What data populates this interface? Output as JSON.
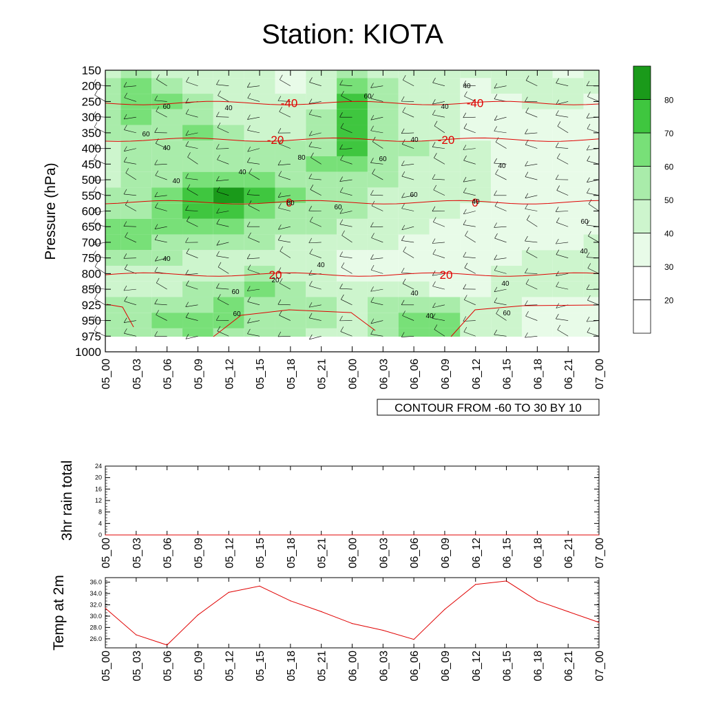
{
  "page": {
    "title": "Station: KIOTA"
  },
  "colors": {
    "contour_shades": [
      "#ffffff",
      "#ffffff",
      "#e8fbe8",
      "#cdf5cd",
      "#a9ecaa",
      "#78e078",
      "#3fc63f",
      "#1a9a1a"
    ],
    "temperature_line": "#e00000",
    "wind_barb": "#000000"
  },
  "chart_data": [
    {
      "type": "heatmap",
      "title": "Station: KIOTA",
      "ylabel": "Pressure (hPa)",
      "xlabel": "",
      "y_ticks": [
        "150",
        "200",
        "250",
        "300",
        "350",
        "400",
        "450",
        "500",
        "550",
        "600",
        "650",
        "700",
        "750",
        "800",
        "850",
        "925",
        "950",
        "975",
        "1000"
      ],
      "x_ticks": [
        "05_00",
        "05_03",
        "05_06",
        "05_09",
        "05_12",
        "05_15",
        "05_18",
        "05_21",
        "06_00",
        "06_03",
        "06_06",
        "06_09",
        "06_12",
        "06_15",
        "06_18",
        "06_21",
        "07_00"
      ],
      "info_label": "CONTOUR FROM -60 TO 30 BY 10",
      "colorbar": {
        "levels": [
          20,
          30,
          40,
          50,
          60,
          70,
          80
        ],
        "tick_labels": [
          "20",
          "30",
          "40",
          "50",
          "60",
          "70",
          "80"
        ]
      },
      "rh_grid": [
        [
          45,
          50,
          48,
          45,
          42,
          40,
          38,
          40,
          52,
          45,
          42,
          40,
          40,
          42,
          40,
          38,
          40
        ],
        [
          55,
          62,
          55,
          48,
          44,
          40,
          38,
          42,
          60,
          50,
          44,
          40,
          38,
          40,
          42,
          44,
          40
        ],
        [
          58,
          66,
          60,
          52,
          45,
          42,
          40,
          46,
          72,
          55,
          45,
          40,
          38,
          38,
          40,
          40,
          38
        ],
        [
          55,
          60,
          58,
          55,
          48,
          44,
          42,
          50,
          76,
          56,
          46,
          40,
          36,
          36,
          38,
          38,
          36
        ],
        [
          50,
          56,
          58,
          64,
          52,
          46,
          45,
          55,
          74,
          58,
          48,
          42,
          38,
          36,
          36,
          36,
          34
        ],
        [
          48,
          52,
          54,
          58,
          54,
          50,
          50,
          58,
          72,
          58,
          50,
          44,
          40,
          36,
          35,
          34,
          34
        ],
        [
          46,
          50,
          52,
          56,
          58,
          56,
          56,
          60,
          62,
          54,
          48,
          44,
          40,
          38,
          36,
          34,
          34
        ],
        [
          48,
          52,
          58,
          62,
          64,
          60,
          56,
          58,
          56,
          50,
          46,
          42,
          40,
          38,
          36,
          34,
          33
        ],
        [
          52,
          56,
          66,
          78,
          82,
          70,
          60,
          58,
          54,
          48,
          44,
          42,
          40,
          36,
          34,
          33,
          32
        ],
        [
          54,
          58,
          64,
          74,
          76,
          66,
          58,
          56,
          52,
          46,
          42,
          40,
          38,
          35,
          33,
          32,
          32
        ],
        [
          60,
          62,
          62,
          64,
          62,
          58,
          52,
          50,
          48,
          44,
          40,
          38,
          36,
          34,
          33,
          32,
          33
        ],
        [
          62,
          60,
          58,
          56,
          54,
          50,
          46,
          44,
          42,
          40,
          38,
          36,
          35,
          34,
          36,
          38,
          40
        ],
        [
          56,
          52,
          50,
          48,
          46,
          44,
          42,
          40,
          38,
          36,
          34,
          34,
          34,
          36,
          40,
          44,
          46
        ],
        [
          48,
          46,
          44,
          44,
          46,
          50,
          48,
          42,
          38,
          36,
          34,
          34,
          36,
          40,
          42,
          44,
          44
        ],
        [
          46,
          44,
          44,
          50,
          58,
          64,
          56,
          46,
          42,
          40,
          40,
          38,
          38,
          40,
          40,
          40,
          40
        ],
        [
          50,
          52,
          54,
          58,
          60,
          58,
          54,
          50,
          46,
          50,
          56,
          54,
          44,
          40,
          38,
          36,
          36
        ],
        [
          52,
          56,
          60,
          62,
          60,
          56,
          52,
          50,
          48,
          56,
          60,
          60,
          46,
          40,
          38,
          36,
          36
        ],
        [
          50,
          54,
          58,
          60,
          58,
          54,
          50,
          48,
          46,
          58,
          68,
          62,
          46,
          40,
          38,
          36,
          36
        ],
        [
          50,
          52,
          54,
          56,
          55,
          52,
          48,
          46,
          44,
          50,
          60,
          56,
          44,
          40,
          38,
          36,
          36
        ]
      ],
      "temperature_contours": [
        {
          "label": "-40",
          "pressure": 255
        },
        {
          "label": "-20",
          "pressure": 372
        },
        {
          "label": "0",
          "pressure": 572
        },
        {
          "label": "20",
          "pressure": 803
        }
      ],
      "rh_contour_labels": [
        "60",
        "40",
        "40",
        "-40",
        "60",
        "40",
        "-40",
        "40",
        "60",
        "40",
        "-20",
        "40",
        "-20",
        "80",
        "60",
        "40",
        "40",
        "60",
        "0",
        "80",
        "60",
        "40",
        "0",
        "60",
        "20",
        "40",
        "20",
        "40",
        "40",
        "60",
        "40",
        "20",
        "40",
        "60",
        "40",
        "60"
      ]
    },
    {
      "type": "line",
      "title": "",
      "ylabel": "3hr rain total",
      "xlabel": "",
      "ylim": [
        0,
        24
      ],
      "y_ticks": [
        "0",
        "4",
        "8",
        "12",
        "16",
        "20",
        "24"
      ],
      "x": [
        "05_00",
        "05_03",
        "05_06",
        "05_09",
        "05_12",
        "05_15",
        "05_18",
        "05_21",
        "06_00",
        "06_03",
        "06_06",
        "06_09",
        "06_12",
        "06_15",
        "06_18",
        "06_21",
        "07_00"
      ],
      "series": [
        {
          "values": [
            0,
            0,
            0,
            0,
            0,
            0,
            0,
            0,
            0,
            0,
            0,
            0,
            0,
            0,
            0,
            0,
            0
          ]
        }
      ]
    },
    {
      "type": "line",
      "title": "",
      "ylabel": "Temp at 2m",
      "xlabel": "",
      "ylim": [
        24.4,
        36.8
      ],
      "y_ticks": [
        "26.0",
        "28.0",
        "30.0",
        "32.0",
        "34.0",
        "36.0"
      ],
      "x": [
        "05_00",
        "05_03",
        "05_06",
        "05_09",
        "05_12",
        "05_15",
        "05_18",
        "05_21",
        "06_00",
        "06_03",
        "06_06",
        "06_09",
        "06_12",
        "06_15",
        "06_18",
        "06_21",
        "07_00"
      ],
      "series": [
        {
          "values": [
            31.4,
            26.7,
            24.9,
            30.2,
            34.2,
            35.3,
            32.7,
            30.8,
            28.7,
            27.5,
            25.9,
            31.2,
            35.6,
            36.2,
            32.7,
            30.8,
            28.9
          ]
        }
      ]
    }
  ]
}
